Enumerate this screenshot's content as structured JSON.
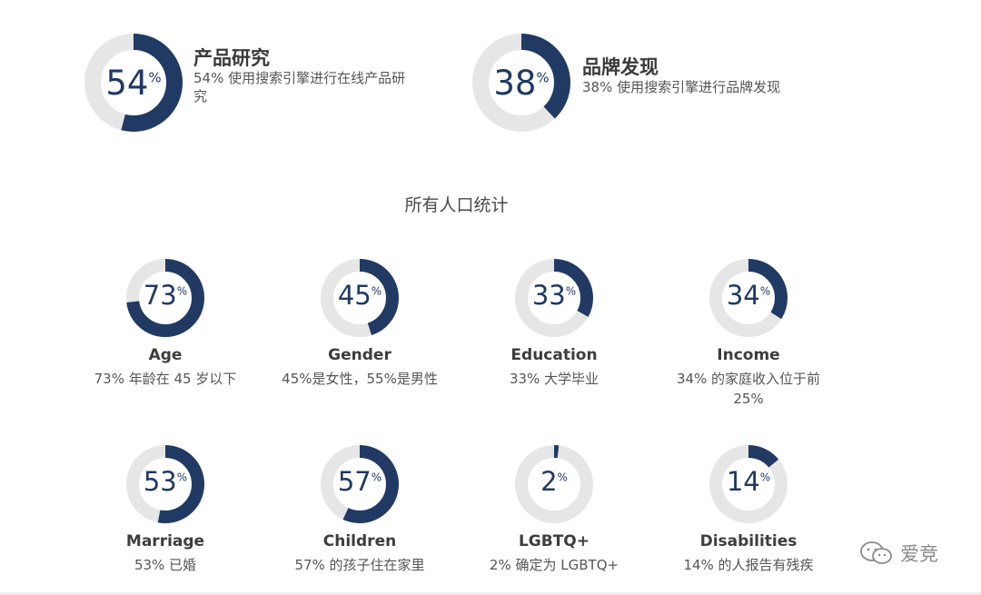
{
  "colors": {
    "accent": "#213a64",
    "track": "#e6e6e6",
    "heading": "#3a3a3a",
    "text": "#555555"
  },
  "featured": [
    {
      "value": 54,
      "percent_sign": "%",
      "title": "产品研究",
      "desc_line1": "54% 使用搜索引擎进行在线产品研",
      "desc_line2": "究"
    },
    {
      "value": 38,
      "percent_sign": "%",
      "title": "品牌发现",
      "desc_line1": "38% 使用搜索引擎进行品牌发现",
      "desc_line2": ""
    }
  ],
  "section_title": "所有人口统计",
  "demographics": [
    {
      "value": 73,
      "percent_sign": "%",
      "label": "Age",
      "desc_line1": "73% 年龄在 45 岁以下",
      "desc_line2": ""
    },
    {
      "value": 45,
      "percent_sign": "%",
      "label": "Gender",
      "desc_line1": "45%是女性，55%是男性",
      "desc_line2": ""
    },
    {
      "value": 33,
      "percent_sign": "%",
      "label": "Education",
      "desc_line1": "33% 大学毕业",
      "desc_line2": ""
    },
    {
      "value": 34,
      "percent_sign": "%",
      "label": "Income",
      "desc_line1": "34% 的家庭收入位于前",
      "desc_line2": "25%"
    },
    {
      "value": 53,
      "percent_sign": "%",
      "label": "Marriage",
      "desc_line1": "53% 已婚",
      "desc_line2": ""
    },
    {
      "value": 57,
      "percent_sign": "%",
      "label": "Children",
      "desc_line1": "57% 的孩子住在家里",
      "desc_line2": ""
    },
    {
      "value": 2,
      "percent_sign": "%",
      "label": "LGBTQ+",
      "desc_line1": "2% 确定为 LGBTQ+",
      "desc_line2": ""
    },
    {
      "value": 14,
      "percent_sign": "%",
      "label": "Disabilities",
      "desc_line1": "14% 的人报告有残疾",
      "desc_line2": ""
    }
  ],
  "watermark": {
    "text": "爱竞",
    "icon": "wechat-icon"
  },
  "chart_data": [
    {
      "type": "pie",
      "title": "",
      "categories": [
        "产品研究",
        "品牌发现"
      ],
      "values": [
        54,
        38
      ],
      "unit": "%"
    },
    {
      "type": "pie",
      "title": "所有人口统计",
      "categories": [
        "Age",
        "Gender",
        "Education",
        "Income",
        "Marriage",
        "Children",
        "LGBTQ+",
        "Disabilities"
      ],
      "values": [
        73,
        45,
        33,
        34,
        53,
        57,
        2,
        14
      ],
      "unit": "%"
    }
  ]
}
